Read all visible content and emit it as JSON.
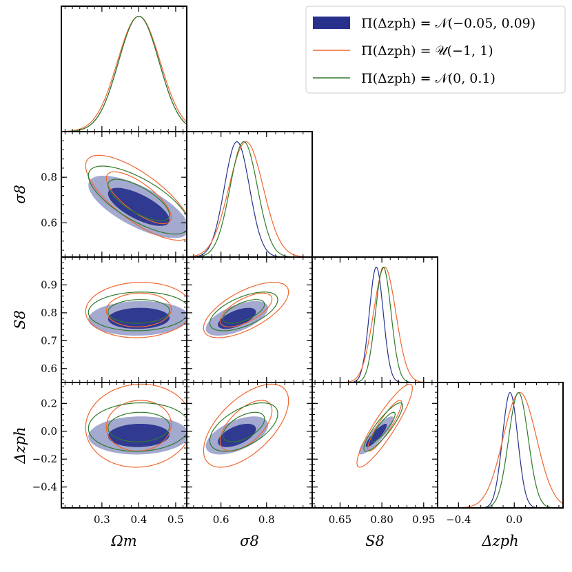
{
  "chart_data": {
    "type": "corner",
    "parameters": [
      {
        "key": "Om",
        "label": "Ωm",
        "range": [
          0.19,
          0.53
        ],
        "ticks": [
          0.3,
          0.4,
          0.5
        ],
        "tick_labels": [
          "0.3",
          "0.4",
          "0.5"
        ]
      },
      {
        "key": "s8",
        "label": "σ8",
        "range": [
          0.45,
          1.0
        ],
        "ticks": [
          0.6,
          0.8
        ],
        "tick_labels": [
          "0.6",
          "0.8"
        ]
      },
      {
        "key": "S8",
        "label": "S8",
        "range": [
          0.55,
          1.0
        ],
        "ticks": [
          0.6,
          0.7,
          0.8,
          0.9
        ],
        "tick_labels": [
          "0.6",
          "0.7",
          "0.8",
          "0.9"
        ],
        "x_ticks": [
          0.65,
          0.8,
          0.95
        ],
        "x_tick_labels": [
          "0.65",
          "0.80",
          "0.95"
        ]
      },
      {
        "key": "dz",
        "label": "Δzph",
        "range": [
          -0.55,
          0.35
        ],
        "ticks": [
          -0.4,
          -0.2,
          0.0,
          0.2
        ],
        "tick_labels": [
          "−0.4",
          "−0.2",
          "0.0",
          "0.2"
        ],
        "x_ticks": [
          -0.4,
          0.0
        ],
        "x_tick_labels": [
          "−0.4",
          "0.0"
        ]
      }
    ],
    "series": [
      {
        "name": "Π(Δzph) = 𝒩(−0.05, 0.09)",
        "color": "#27318c",
        "filled": true,
        "mean": [
          0.4,
          0.67,
          0.78,
          -0.03
        ],
        "std": [
          0.055,
          0.055,
          0.025,
          0.055
        ],
        "corr": [
          [
            1,
            -0.7,
            0.05,
            0.05
          ],
          [
            -0.7,
            1,
            0.6,
            0.55
          ],
          [
            0.05,
            0.6,
            1,
            0.88
          ],
          [
            0.05,
            0.55,
            0.88,
            1
          ]
        ]
      },
      {
        "name": "Π(Δzph) = 𝒰(−1, 1)",
        "color": "#f0662e",
        "filled": false,
        "mean": [
          0.4,
          0.71,
          0.81,
          0.04
        ],
        "std": [
          0.058,
          0.075,
          0.04,
          0.12
        ],
        "corr": [
          [
            1,
            -0.75,
            0.05,
            0.05
          ],
          [
            -0.75,
            1,
            0.65,
            0.6
          ],
          [
            0.05,
            0.65,
            1,
            0.9
          ],
          [
            0.05,
            0.6,
            0.9,
            1
          ]
        ]
      },
      {
        "name": "Π(Δzph) = 𝒩(0, 0.1)",
        "color": "#2f7a2a",
        "filled": false,
        "mean": [
          0.4,
          0.7,
          0.805,
          0.03
        ],
        "std": [
          0.055,
          0.06,
          0.028,
          0.07
        ],
        "corr": [
          [
            1,
            -0.72,
            0.05,
            0.05
          ],
          [
            -0.72,
            1,
            0.6,
            0.55
          ],
          [
            0.05,
            0.6,
            1,
            0.88
          ],
          [
            0.05,
            0.55,
            0.88,
            1
          ]
        ]
      }
    ],
    "legend_position": "top-right",
    "grid": false
  }
}
